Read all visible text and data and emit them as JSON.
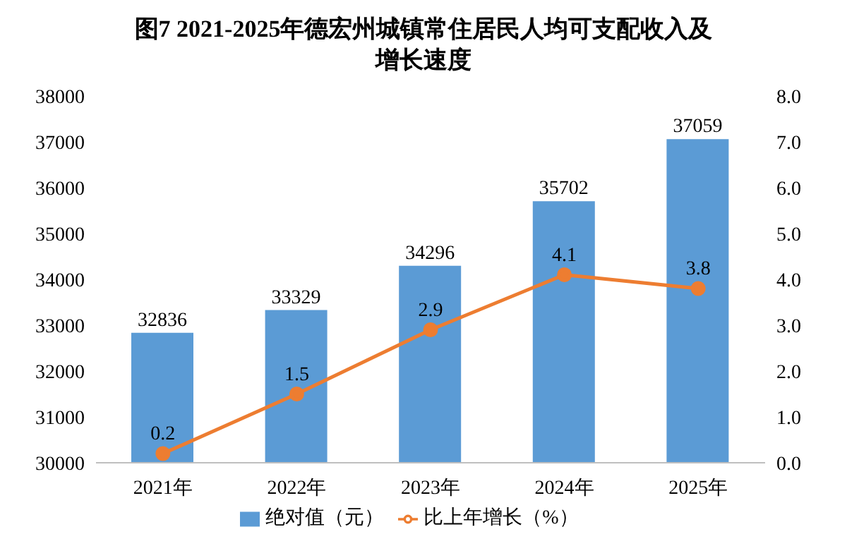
{
  "chart_data": {
    "type": "bar",
    "title": "图7 2021-2025年德宏州城镇常住居民人均可支配收入及增长速度",
    "categories": [
      "2021年",
      "2022年",
      "2023年",
      "2024年",
      "2025年"
    ],
    "series": [
      {
        "name": "绝对值（元）",
        "color": "#5b9bd5",
        "values": [
          32836,
          33329,
          34296,
          35702,
          37059
        ]
      },
      {
        "name": "比上年增长（%）",
        "type": "line",
        "axis": "y2",
        "color": "#ed7d31",
        "values": [
          0.2,
          1.5,
          2.9,
          4.1,
          3.8
        ]
      }
    ],
    "ylim": [
      30000,
      38000
    ],
    "yticks": [
      30000,
      31000,
      32000,
      33000,
      34000,
      35000,
      36000,
      37000,
      38000
    ],
    "y2lim": [
      0,
      8
    ],
    "y2ticks": [
      {
        "value": 0,
        "label": "0.0"
      },
      {
        "value": 1,
        "label": "1.0"
      },
      {
        "value": 2,
        "label": "2.0"
      },
      {
        "value": 3,
        "label": "3.0"
      },
      {
        "value": 4,
        "label": "4.0"
      },
      {
        "value": 5,
        "label": "5.0"
      },
      {
        "value": 6,
        "label": "6.0"
      },
      {
        "value": 7,
        "label": "7.0"
      },
      {
        "value": 8,
        "label": "8.0"
      }
    ],
    "data_labels": true,
    "grid": false,
    "legend": "bottom",
    "marker": "circle"
  }
}
